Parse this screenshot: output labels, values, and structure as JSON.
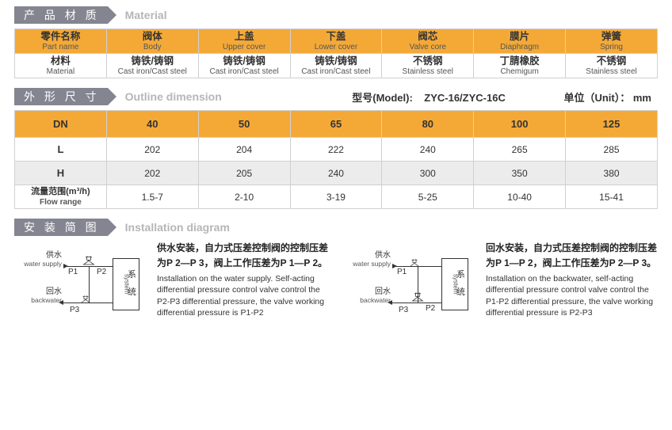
{
  "sections": {
    "material": {
      "cn": "产 品 材 质",
      "en": "Material"
    },
    "dimension": {
      "cn": "外 形 尺 寸",
      "en": "Outline dimension"
    },
    "install": {
      "cn": "安 装 简 图",
      "en": "Installation diagram"
    }
  },
  "material_table": {
    "cols": [
      {
        "cn": "零件名称",
        "en": "Part name"
      },
      {
        "cn": "阀体",
        "en": "Body"
      },
      {
        "cn": "上盖",
        "en": "Upper cover"
      },
      {
        "cn": "下盖",
        "en": "Lower cover"
      },
      {
        "cn": "阀芯",
        "en": "Valve core"
      },
      {
        "cn": "膜片",
        "en": "Diaphragm"
      },
      {
        "cn": "弹簧",
        "en": "Spring"
      }
    ],
    "row": [
      {
        "cn": "材料",
        "en": "Material"
      },
      {
        "cn": "铸铁/铸钢",
        "en": "Cast iron/Cast steel"
      },
      {
        "cn": "铸铁/铸钢",
        "en": "Cast iron/Cast steel"
      },
      {
        "cn": "铸铁/铸钢",
        "en": "Cast iron/Cast steel"
      },
      {
        "cn": "不锈钢",
        "en": "Stainless steel"
      },
      {
        "cn": "丁腈橡胶",
        "en": "Chemigum"
      },
      {
        "cn": "不锈钢",
        "en": "Stainless steel"
      }
    ]
  },
  "model": {
    "label": "型号(Model):",
    "value": "ZYC-16/ZYC-16C",
    "unit_label": "单位（Unit）：",
    "unit_value": "mm"
  },
  "dim_table": {
    "header": [
      "DN",
      "40",
      "50",
      "65",
      "80",
      "100",
      "125"
    ],
    "rows": [
      {
        "label": "L",
        "vals": [
          "202",
          "204",
          "222",
          "240",
          "265",
          "285"
        ]
      },
      {
        "label": "H",
        "vals": [
          "202",
          "205",
          "240",
          "300",
          "350",
          "380"
        ]
      },
      {
        "label_cn": "流量范围(m³/h)",
        "label_en": "Flow range",
        "vals": [
          "1.5-7",
          "2-10",
          "3-19",
          "5-25",
          "10-40",
          "15-41"
        ]
      }
    ]
  },
  "diagram": {
    "supply": {
      "cn": "供水",
      "en": "water supply"
    },
    "back": {
      "cn": "回水",
      "en": "backwater"
    },
    "sys_cn_a": "系",
    "sys_cn_b": "统",
    "sys_en": "system",
    "p1": "P1",
    "p2": "P2",
    "p3": "P3"
  },
  "install_left": {
    "cn": "供水安装，自力式压差控制阀的控制压差为P 2—P 3，阀上工作压差为P 1—P 2。",
    "en": "Installation on the water supply. Self-acting differential pressure control valve control the P2-P3 differential pressure, the valve working differential pressure is P1-P2"
  },
  "install_right": {
    "cn": "回水安装，自力式压差控制阀的控制压差为P 1—P 2，阀上工作压差为P 2—P 3。",
    "en": "Installation on the backwater,  self-acting differential pressure control valve control the P1-P2 differential pressure, the valve working differential pressure is P2-P3"
  },
  "colors": {
    "badge": "#848590",
    "sub_en": "#b6b6b9",
    "table_header": "#f4a937",
    "border": "#d0d0d0",
    "alt_row": "#ececec"
  }
}
